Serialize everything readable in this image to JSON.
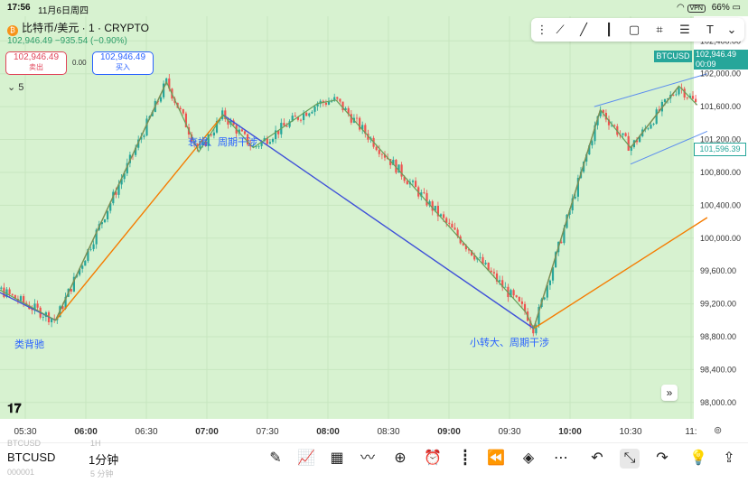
{
  "status": {
    "time": "17:56",
    "date": "11月6日周四",
    "vpn": "VPN",
    "battery": "66%"
  },
  "header": {
    "title": "比特币/美元 · 1 · CRYPTO",
    "price_line": "102,946.49  −935.54 (−0.90%)",
    "sell_price": "102,946.49",
    "sell_label": "卖出",
    "spread": "0.00",
    "buy_price": "102,946.49",
    "buy_label": "买入",
    "indicator_count": "5"
  },
  "tags": {
    "symbol": "BTCUSD",
    "last_price": "102,946.49",
    "countdown": "00:09",
    "crosshair_price": "101,596.39"
  },
  "annotations": [
    "类背驰",
    "衰竭、周期干涉",
    "小转大、周期干涉"
  ],
  "bottom": {
    "symbol": "BTCUSD",
    "interval": "1分钟",
    "ghost1": "BTCUSD",
    "ghost2": "1H",
    "ghost3": "000001",
    "ghost4": "5 分钟"
  },
  "colors": {
    "up": "#26a69a",
    "down": "#ef5350",
    "bg": "#d7f2d0",
    "blue_line": "#3f51d8",
    "orange_line": "#f57c00",
    "red_line": "#e53935",
    "green_line": "#66a05a"
  },
  "chart_data": {
    "type": "candlestick",
    "price_ticks": [
      "102,400.00",
      "102,000.00",
      "101,600.00",
      "101,200.00",
      "100,800.00",
      "100,400.00",
      "100,000.00",
      "99,600.00",
      "99,200.00",
      "98,800.00",
      "98,400.00",
      "98,000.00"
    ],
    "time_ticks": [
      "05:30",
      "06:00",
      "06:30",
      "07:00",
      "07:30",
      "08:00",
      "08:30",
      "09:00",
      "09:30",
      "10:00",
      "10:30",
      "11:"
    ],
    "ylim": [
      97800,
      102700
    ],
    "pivots": [
      {
        "t": "05:15",
        "p": 99400
      },
      {
        "t": "05:45",
        "p": 99000
      },
      {
        "t": "06:40",
        "p": 101900
      },
      {
        "t": "06:56",
        "p": 101050
      },
      {
        "t": "07:08",
        "p": 101500
      },
      {
        "t": "07:23",
        "p": 101100
      },
      {
        "t": "07:55",
        "p": 101640
      },
      {
        "t": "08:04",
        "p": 101680
      },
      {
        "t": "09:38",
        "p": 99100
      },
      {
        "t": "09:42",
        "p": 98900
      },
      {
        "t": "10:15",
        "p": 101560
      },
      {
        "t": "10:30",
        "p": 101100
      },
      {
        "t": "10:54",
        "p": 101850
      },
      {
        "t": "11:03",
        "p": 101620
      }
    ],
    "trend_lines": [
      {
        "from": {
          "t": "05:00",
          "p": 99550
        },
        "to": {
          "t": "05:45",
          "p": 99000
        },
        "color": "blue"
      },
      {
        "from": {
          "t": "07:08",
          "p": 101500
        },
        "to": {
          "t": "09:42",
          "p": 98900
        },
        "color": "blue"
      },
      {
        "from": {
          "t": "05:45",
          "p": 99000
        },
        "to": {
          "t": "07:08",
          "p": 101500
        },
        "color": "orange"
      },
      {
        "from": {
          "t": "09:42",
          "p": 98900
        },
        "to": {
          "t": "11:08",
          "p": 100250
        },
        "color": "orange"
      },
      {
        "from": {
          "t": "05:45",
          "p": 99000
        },
        "to": {
          "t": "06:40",
          "p": 101900
        },
        "color": "red"
      },
      {
        "from": {
          "t": "09:42",
          "p": 98900
        },
        "to": {
          "t": "10:15",
          "p": 101560
        },
        "color": "red"
      },
      {
        "from": {
          "t": "10:30",
          "p": 101100
        },
        "to": {
          "t": "10:54",
          "p": 101850
        },
        "color": "red"
      }
    ],
    "channel": {
      "upper": {
        "from": {
          "t": "10:12",
          "p": 101600
        },
        "to": {
          "t": "11:08",
          "p": 102000
        }
      },
      "lower": {
        "from": {
          "t": "10:30",
          "p": 100900
        },
        "to": {
          "t": "11:08",
          "p": 101300
        }
      }
    }
  }
}
